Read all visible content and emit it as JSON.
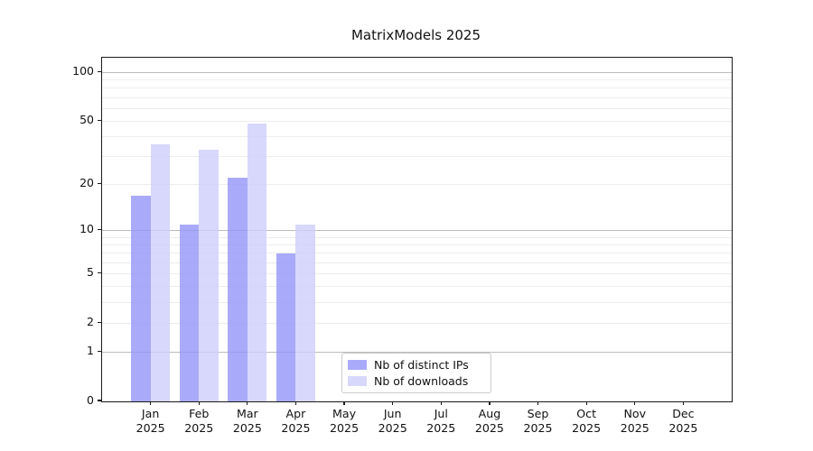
{
  "title": "MatrixModels 2025",
  "legend": {
    "items": [
      {
        "label": "Nb of distinct IPs"
      },
      {
        "label": "Nb of downloads"
      }
    ]
  },
  "colors": {
    "series_ips": "#9595f9",
    "series_downloads": "#cecefb",
    "major_grid": "#bdbdbd",
    "minor_grid": "#ededed",
    "spine": "#1a1a1a",
    "text": "#111111"
  },
  "chart_data": {
    "type": "bar",
    "title": "MatrixModels 2025",
    "categories": [
      "Jan 2025",
      "Feb 2025",
      "Mar 2025",
      "Apr 2025",
      "May 2025",
      "Jun 2025",
      "Jul 2025",
      "Aug 2025",
      "Sep 2025",
      "Oct 2025",
      "Nov 2025",
      "Dec 2025"
    ],
    "series": [
      {
        "name": "Nb of distinct IPs",
        "color": "#9595f9",
        "values": [
          17,
          11,
          22,
          7,
          0,
          0,
          0,
          0,
          0,
          0,
          0,
          0
        ]
      },
      {
        "name": "Nb of downloads",
        "color": "#cecefb",
        "values": [
          36,
          33,
          48,
          11,
          0,
          0,
          0,
          0,
          0,
          0,
          0,
          0
        ]
      }
    ],
    "xlabel": "",
    "ylabel": "",
    "yscale": "log1p",
    "ylim": [
      0,
      123
    ],
    "xlim": [
      -1,
      12
    ],
    "yticks": [
      100,
      50,
      20,
      10,
      5,
      2,
      1,
      0
    ],
    "major_gridlines": [
      1,
      10,
      100
    ],
    "minor_gridlines": [
      2,
      3,
      4,
      5,
      6,
      7,
      8,
      9,
      20,
      30,
      40,
      50,
      60,
      70,
      80,
      90
    ],
    "bar_width_units": 0.4,
    "grid": true,
    "legend_position": "lower center"
  }
}
